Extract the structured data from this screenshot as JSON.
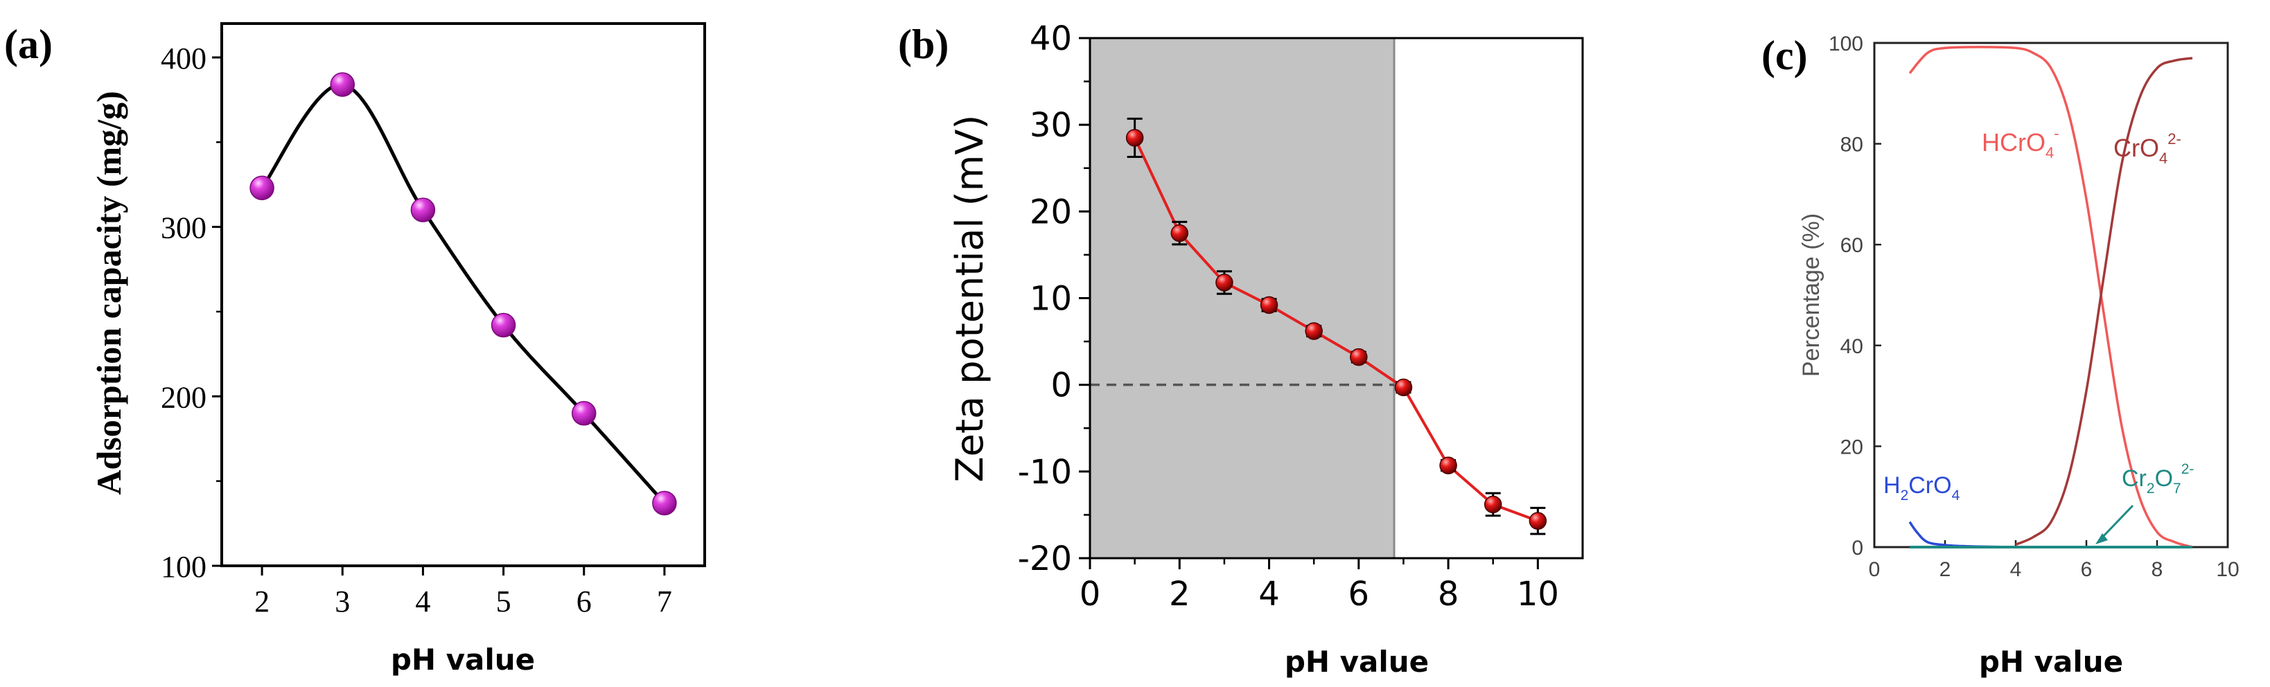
{
  "panels": {
    "a": {
      "label": "(a)"
    },
    "b": {
      "label": "(b)"
    },
    "c": {
      "label": "(c)"
    }
  },
  "colors": {
    "a_marker": "#cc22cc",
    "b_line": "#e32020",
    "b_marker": "#e81818",
    "b_shade": "#c3c3c3",
    "c_hcro4": "#f05a5a",
    "c_cro4": "#a33a3a",
    "c_h2cro4": "#2a4bd6",
    "c_cr2o7": "#1f8a84"
  },
  "chart_data": [
    {
      "type": "line",
      "title": "",
      "xlabel": "pH value",
      "ylabel": "Adsorption capacity (mg/g)",
      "x": [
        2,
        3,
        4,
        5,
        6,
        7
      ],
      "values": [
        323,
        384,
        310,
        242,
        190,
        137
      ],
      "xlim": [
        1.5,
        7.5
      ],
      "ylim": [
        100,
        420
      ],
      "xticks": [
        2,
        3,
        4,
        5,
        6,
        7
      ],
      "yticks": [
        100,
        200,
        300,
        400
      ],
      "grid": false,
      "smooth": true
    },
    {
      "type": "line",
      "title": "",
      "xlabel": "pH value",
      "ylabel": "Zeta potential (mV)",
      "x": [
        1,
        2,
        3,
        4,
        5,
        6,
        7,
        8,
        9,
        10
      ],
      "values": [
        28.5,
        17.5,
        11.8,
        9.2,
        6.2,
        3.2,
        -0.3,
        -9.3,
        -13.8,
        -15.7
      ],
      "errors": [
        2.2,
        1.3,
        1.3,
        0.7,
        0.6,
        0.6,
        0.6,
        0.6,
        1.3,
        1.5
      ],
      "xlim": [
        0,
        11
      ],
      "ylim": [
        -20,
        40
      ],
      "xticks": [
        0,
        2,
        4,
        6,
        8,
        10
      ],
      "yticks": [
        -20,
        -10,
        0,
        10,
        20,
        30,
        40
      ],
      "shaded_region_x": [
        0,
        6.8
      ],
      "reference_line_y": 0,
      "grid": false
    },
    {
      "type": "line",
      "title": "",
      "xlabel": "pH value",
      "ylabel": "Percentage (%)",
      "xlim": [
        0,
        10
      ],
      "ylim": [
        0,
        100
      ],
      "xticks": [
        0,
        2,
        4,
        6,
        8,
        10
      ],
      "yticks": [
        0,
        20,
        40,
        60,
        80,
        100
      ],
      "grid": false,
      "series": [
        {
          "name": "HCrO4-",
          "label_main": "HCrO",
          "label_sub": "4",
          "label_sup": "-",
          "color": "#f05a5a",
          "x": [
            1,
            1.5,
            2,
            3,
            4,
            4.5,
            5,
            5.5,
            6,
            6.5,
            7,
            7.5,
            8,
            8.5,
            9
          ],
          "values": [
            94,
            98,
            99,
            99.2,
            99,
            98,
            95,
            86,
            69,
            46,
            24,
            10,
            3,
            1,
            0
          ]
        },
        {
          "name": "CrO42-",
          "label_main": "CrO",
          "label_sub": "4",
          "label_sup": "2-",
          "color": "#a33a3a",
          "x": [
            4,
            4.5,
            5,
            5.5,
            6,
            6.5,
            7,
            7.5,
            8,
            8.5,
            9
          ],
          "values": [
            0.5,
            2,
            5,
            14,
            31,
            54,
            76,
            89,
            95,
            96.5,
            97
          ]
        },
        {
          "name": "H2CrO4",
          "label_main": "H",
          "label_sub": "2",
          "label_main2": "CrO",
          "label_sub2": "4",
          "color": "#2a4bd6",
          "x": [
            1,
            1.2,
            1.5,
            2,
            2.5,
            3,
            4
          ],
          "values": [
            5,
            3,
            1,
            0.4,
            0.2,
            0.1,
            0
          ]
        },
        {
          "name": "Cr2O72-",
          "label_main": "Cr",
          "label_sub": "2",
          "label_main2": "O",
          "label_sub2": "7",
          "label_sup": "2-",
          "color": "#1f8a84",
          "x": [
            1,
            3,
            5,
            6.5,
            8,
            9
          ],
          "values": [
            0,
            0,
            0,
            0,
            0,
            0
          ]
        }
      ]
    }
  ]
}
